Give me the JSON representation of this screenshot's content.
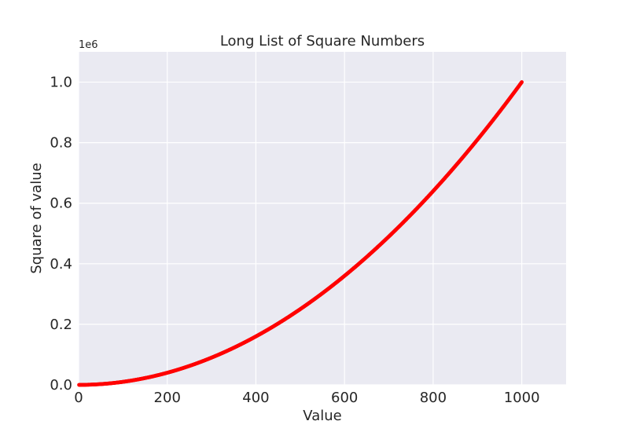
{
  "chart_data": {
    "type": "scatter",
    "title": "Long List of Square Numbers",
    "xlabel": "Value",
    "ylabel": "Square of value",
    "y_offset_label": "1e6",
    "xlim": [
      0,
      1100
    ],
    "ylim": [
      0,
      1100000
    ],
    "x_ticks": [
      0,
      200,
      400,
      600,
      800,
      1000
    ],
    "x_tick_labels": [
      "0",
      "200",
      "400",
      "600",
      "800",
      "1000"
    ],
    "y_ticks": [
      0,
      200000,
      400000,
      600000,
      800000,
      1000000
    ],
    "y_tick_labels": [
      "0.0",
      "0.2",
      "0.4",
      "0.6",
      "0.8",
      "1.0"
    ],
    "grid": true,
    "series": [
      {
        "x_range": [
          1,
          1000
        ],
        "function": "y = x^2",
        "color": "#ff0000"
      }
    ]
  },
  "colors": {
    "plot_background": "#eaeaf2",
    "grid": "#ffffff",
    "text": "#262626"
  }
}
